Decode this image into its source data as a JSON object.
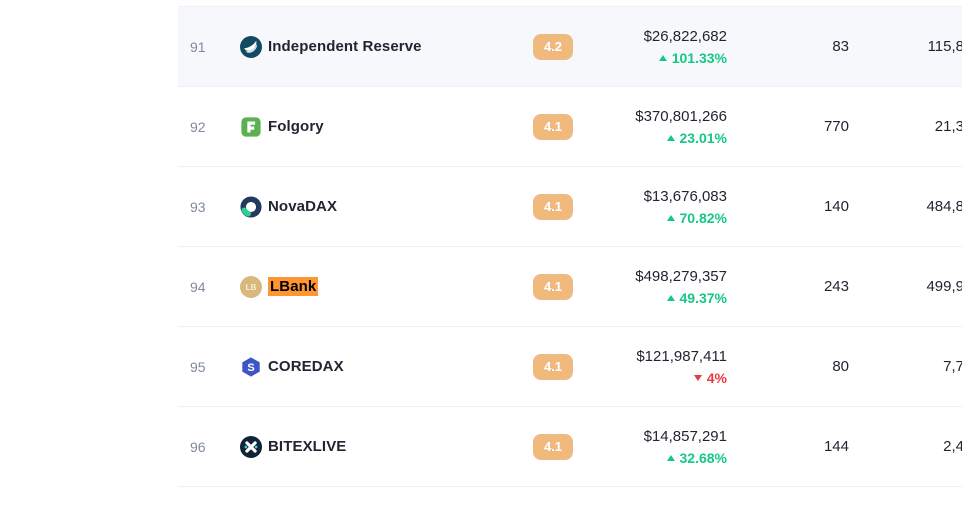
{
  "colors": {
    "positive_change": "#16c784",
    "negative_change": "#ea3943",
    "rating_badge_bg": "#f0b97e",
    "search_highlight_bg": "#ff9632",
    "highlighted_row_bg": "#f7f8fc",
    "row_divider": "#eff2f5",
    "rank_text": "#808a9d",
    "primary_text": "#222531"
  },
  "table": {
    "rows": [
      {
        "rank": "91",
        "name": "Independent Reserve",
        "logo": "independent-reserve",
        "rating": "4.2",
        "volume_24h": "$26,822,682",
        "change": "101.33%",
        "change_direction": "up",
        "markets": "83",
        "last_value_fragment": "115,8",
        "highlighted": true,
        "name_search_highlighted": false
      },
      {
        "rank": "92",
        "name": "Folgory",
        "logo": "folgory",
        "rating": "4.1",
        "volume_24h": "$370,801,266",
        "change": "23.01%",
        "change_direction": "up",
        "markets": "770",
        "last_value_fragment": "21,3",
        "highlighted": false,
        "name_search_highlighted": false
      },
      {
        "rank": "93",
        "name": "NovaDAX",
        "logo": "novadax",
        "rating": "4.1",
        "volume_24h": "$13,676,083",
        "change": "70.82%",
        "change_direction": "up",
        "markets": "140",
        "last_value_fragment": "484,8",
        "highlighted": false,
        "name_search_highlighted": false
      },
      {
        "rank": "94",
        "name": "LBank",
        "logo": "lbank",
        "rating": "4.1",
        "volume_24h": "$498,279,357",
        "change": "49.37%",
        "change_direction": "up",
        "markets": "243",
        "last_value_fragment": "499,9",
        "highlighted": false,
        "name_search_highlighted": true
      },
      {
        "rank": "95",
        "name": "COREDAX",
        "logo": "coredax",
        "rating": "4.1",
        "volume_24h": "$121,987,411",
        "change": "4%",
        "change_direction": "down",
        "markets": "80",
        "last_value_fragment": "7,7",
        "highlighted": false,
        "name_search_highlighted": false
      },
      {
        "rank": "96",
        "name": "BITEXLIVE",
        "logo": "bitexlive",
        "rating": "4.1",
        "volume_24h": "$14,857,291",
        "change": "32.68%",
        "change_direction": "up",
        "markets": "144",
        "last_value_fragment": "2,4",
        "highlighted": false,
        "name_search_highlighted": false
      }
    ]
  }
}
